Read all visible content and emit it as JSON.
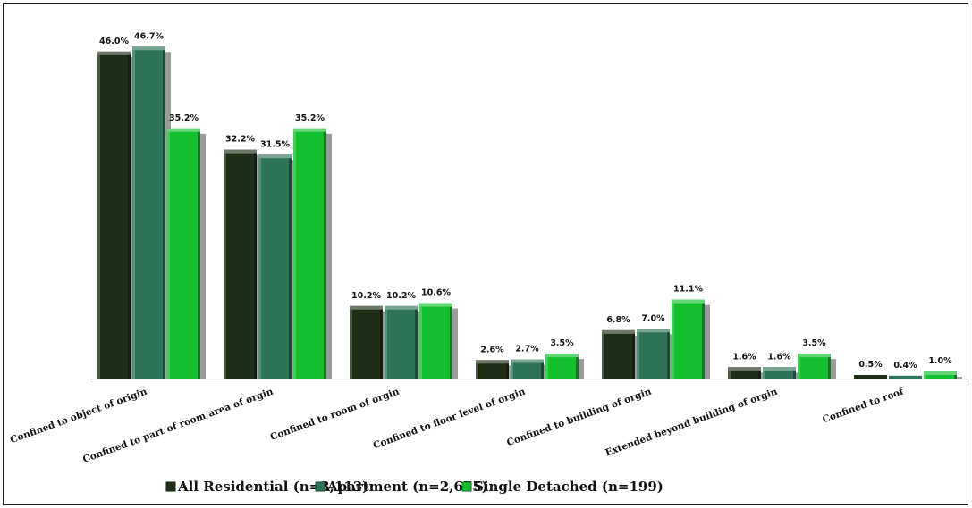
{
  "chart_data": {
    "type": "bar",
    "title": "",
    "xlabel": "",
    "ylabel": "",
    "ylim": [
      0,
      50
    ],
    "grid": false,
    "legend_position": "bottom",
    "value_suffix": "%",
    "categories": [
      "Confined to object of origin",
      "Confined to part of room/area of orgin",
      "Confined to room of orgin",
      "Confined to floor level of orgin",
      "Confined to building of orgin",
      "Extended beyond building of orgin",
      "Confined to roof"
    ],
    "series": [
      {
        "name": "All Residential (n=3,113)",
        "color": "#1f2f17",
        "values": [
          46.0,
          32.2,
          10.2,
          2.6,
          6.8,
          1.6,
          0.5
        ]
      },
      {
        "name": "Apartment (n=2,675)",
        "color": "#2e7458",
        "values": [
          46.7,
          31.5,
          10.2,
          2.7,
          7.0,
          1.6,
          0.4
        ]
      },
      {
        "name": "Single Detached (n=199)",
        "color": "#12c02d",
        "values": [
          35.2,
          35.2,
          10.6,
          3.5,
          11.1,
          3.5,
          1.0
        ]
      }
    ]
  }
}
